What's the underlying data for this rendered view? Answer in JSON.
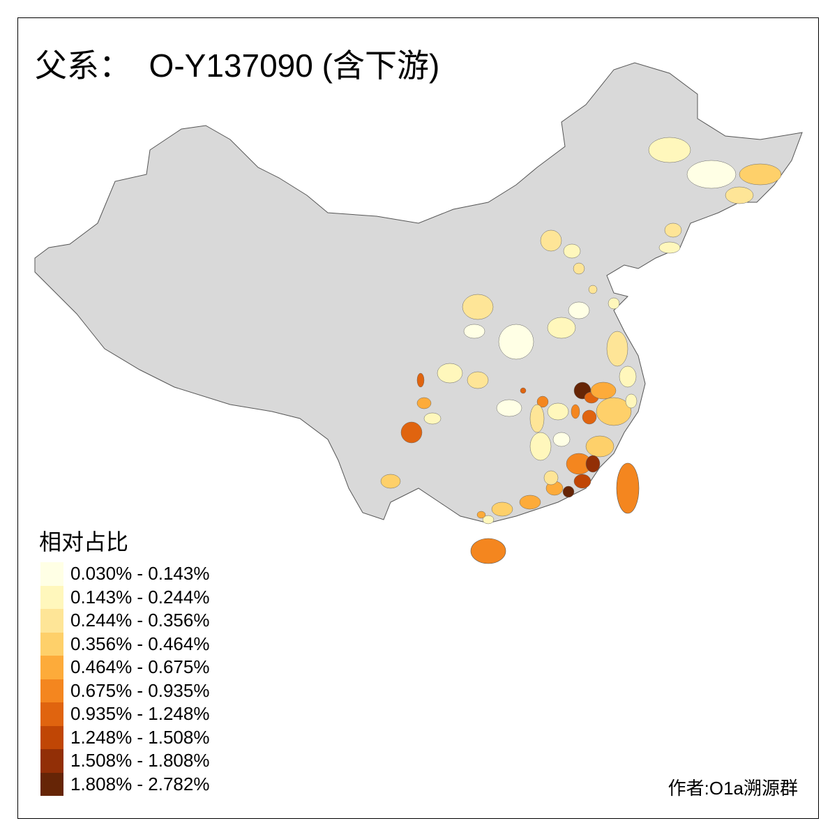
{
  "title": "父系：  O-Y137090 (含下游)",
  "legend": {
    "title": "相对占比",
    "items": [
      {
        "label": "0.030% - 0.143%",
        "color": "#FFFFE5"
      },
      {
        "label": "0.143% - 0.244%",
        "color": "#FFF7BC"
      },
      {
        "label": "0.244% - 0.356%",
        "color": "#FEE597"
      },
      {
        "label": "0.356% - 0.464%",
        "color": "#FED06A"
      },
      {
        "label": "0.464% - 0.675%",
        "color": "#FDAB3A"
      },
      {
        "label": "0.675% - 0.935%",
        "color": "#F4861F"
      },
      {
        "label": "0.935% - 1.248%",
        "color": "#E0640F"
      },
      {
        "label": "1.248% - 1.508%",
        "color": "#C04605"
      },
      {
        "label": "1.508% - 1.808%",
        "color": "#922F06"
      },
      {
        "label": "1.808% - 2.782%",
        "color": "#662506"
      }
    ]
  },
  "colors": {
    "no_data": "#D9D9D9",
    "boundary": "#555555"
  },
  "author": "作者:O1a溯源群"
}
